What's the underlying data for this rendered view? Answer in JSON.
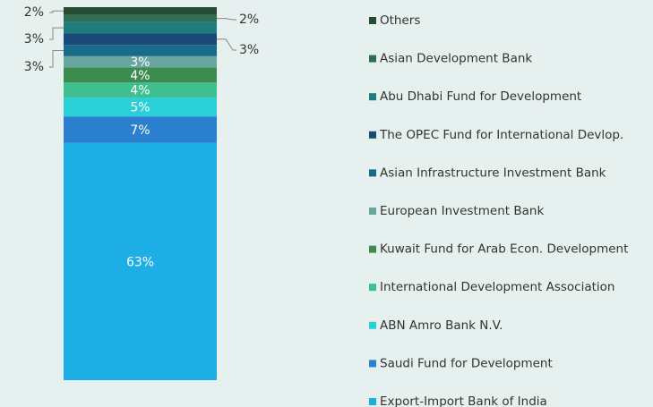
{
  "chart_data": {
    "type": "stacked-bar",
    "series": [
      {
        "name": "Export-Import Bank of India",
        "color": "#1eaee6",
        "values": [
          63
        ],
        "value_labels": [
          "63%"
        ]
      },
      {
        "name": "Saudi Fund for Development",
        "color": "#2a7fcf",
        "values": [
          7
        ],
        "value_labels": [
          "7%"
        ]
      },
      {
        "name": "ABN Amro Bank N.V.",
        "color": "#2ad0d8",
        "values": [
          5
        ],
        "value_labels": [
          "5%"
        ]
      },
      {
        "name": "International Development Association",
        "color": "#3dbf8f",
        "values": [
          4
        ],
        "value_labels": [
          "4%"
        ]
      },
      {
        "name": "Kuwait Fund for Arab Econ. Development",
        "color": "#3d8c4f",
        "values": [
          4
        ],
        "value_labels": [
          "4%"
        ]
      },
      {
        "name": "European Investment Bank",
        "color": "#6aa6a0",
        "values": [
          3
        ],
        "value_labels": [
          "3%"
        ]
      },
      {
        "name": "Asian Infrastructure Investment Bank",
        "color": "#1a6a8a",
        "values": [
          3
        ],
        "value_labels": [
          "3%"
        ]
      },
      {
        "name": "The OPEC Fund for International Devlop.",
        "color": "#1a4a7a",
        "values": [
          3
        ],
        "value_labels": [
          "3%"
        ]
      },
      {
        "name": "Abu Dhabi Fund for Development",
        "color": "#1f7d80",
        "values": [
          3
        ],
        "value_labels": [
          "3%"
        ]
      },
      {
        "name": "Asian Development Bank",
        "color": "#2e6e55",
        "values": [
          2
        ],
        "value_labels": [
          "2%"
        ]
      },
      {
        "name": "Others",
        "color": "#264d33",
        "values": [
          2
        ],
        "value_labels": [
          "2%"
        ]
      }
    ]
  }
}
